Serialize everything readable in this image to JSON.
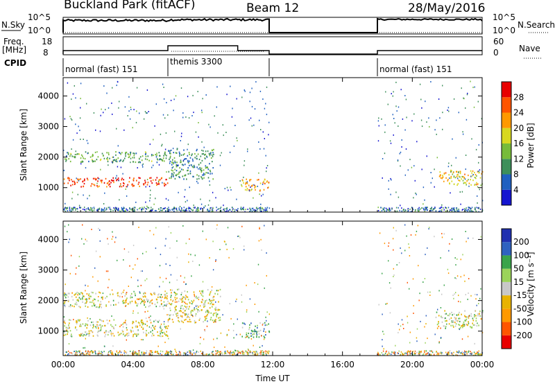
{
  "header": {
    "title": "Buckland Park (fitACF)",
    "beam": "Beam 12",
    "date": "28/May/2016"
  },
  "aux_labels": {
    "nsky": "N.Sky",
    "nsearch": "N.Search",
    "freq": "Freq.",
    "mhz": "[MHz]",
    "nave": "Nave",
    "cpid": "CPID"
  },
  "aux_ticks": {
    "noise_top": "10^5",
    "noise_bottom": "10^0",
    "freq_top": "18",
    "freq_bottom": "8",
    "nave_top": "60",
    "nave_bottom": "0"
  },
  "cpid_segments": [
    {
      "start_h": 0.0,
      "end_h": 6.0,
      "label": "normal (fast) 151"
    },
    {
      "start_h": 6.0,
      "end_h": 11.8,
      "label": "themis 3300"
    },
    {
      "start_h": 18.0,
      "end_h": 24.0,
      "label": "normal (fast) 151"
    }
  ],
  "panels": {
    "power": {
      "ylabel": "Slant Range [km]",
      "cbar_label": "Power [dB]"
    },
    "velocity": {
      "ylabel": "Slant Range [km]",
      "cbar_label": "Velocity [m s⁻¹]"
    }
  },
  "colors": {
    "power": [
      "#1515d0",
      "#2060c0",
      "#3d8f5a",
      "#77bb3a",
      "#d8d820",
      "#ff9900",
      "#ff5500",
      "#e80000"
    ],
    "velocity": [
      "#e80000",
      "#ff5500",
      "#ff9900",
      "#e8b200",
      "#c8c8c8",
      "#9bd35a",
      "#3aa44a",
      "#2f62c0",
      "#2030b0"
    ]
  },
  "chart_data": [
    {
      "type": "heatmap",
      "title": "Power",
      "xlabel": "Time UT",
      "ylabel": "Slant Range [km]",
      "x_unit": "hours UT",
      "xlim": [
        0,
        24
      ],
      "ylim": [
        200,
        4600
      ],
      "x_ticks": [
        "00:00",
        "04:00",
        "08:00",
        "12:00",
        "16:00",
        "20:00",
        "00:00"
      ],
      "y_ticks": [
        "1000",
        "2000",
        "3000",
        "4000"
      ],
      "colorbar": {
        "label": "Power [dB]",
        "ticks": [
          "28",
          "24",
          "20",
          "16",
          "12",
          "8",
          "4"
        ],
        "range": [
          0,
          30
        ]
      },
      "features": [
        {
          "t_start": 0.0,
          "t_end": 6.0,
          "range_km": [
            1050,
            1350
          ],
          "power_db": 26
        },
        {
          "t_start": 0.0,
          "t_end": 6.0,
          "range_km": [
            1850,
            2200
          ],
          "power_db": 11
        },
        {
          "t_start": 6.0,
          "t_end": 8.6,
          "range_km": [
            1300,
            2300
          ],
          "power_db": 9
        },
        {
          "t_start": 10.2,
          "t_end": 11.8,
          "range_km": [
            900,
            1300
          ],
          "power_db": 20
        },
        {
          "t_start": 21.5,
          "t_end": 24.0,
          "range_km": [
            1100,
            1600
          ],
          "power_db": 18
        }
      ]
    },
    {
      "type": "heatmap",
      "title": "Velocity",
      "xlabel": "Time UT",
      "ylabel": "Slant Range [km]",
      "x_unit": "hours UT",
      "xlim": [
        0,
        24
      ],
      "ylim": [
        200,
        4600
      ],
      "x_ticks": [
        "00:00",
        "04:00",
        "08:00",
        "12:00",
        "16:00",
        "20:00",
        "00:00"
      ],
      "y_ticks": [
        "1000",
        "2000",
        "3000",
        "4000"
      ],
      "colorbar": {
        "label": "Velocity [m s⁻¹]",
        "ticks": [
          "200",
          "100",
          "50",
          "15",
          "-15",
          "-50",
          "-100",
          "-200"
        ],
        "range": [
          -250,
          250
        ]
      },
      "features": [
        {
          "t_start": 0.0,
          "t_end": 6.0,
          "range_km": [
            850,
            1400
          ],
          "velocity_ms": 0
        },
        {
          "t_start": 0.0,
          "t_end": 6.0,
          "range_km": [
            1800,
            2300
          ],
          "velocity_ms": 0
        },
        {
          "t_start": 6.0,
          "t_end": 9.0,
          "range_km": [
            1300,
            2400
          ],
          "velocity_ms": 0
        },
        {
          "t_start": 10.2,
          "t_end": 11.8,
          "range_km": [
            800,
            1300
          ],
          "velocity_ms": 60
        },
        {
          "t_start": 21.3,
          "t_end": 24.0,
          "range_km": [
            1100,
            1700
          ],
          "velocity_ms": 0
        }
      ]
    }
  ]
}
